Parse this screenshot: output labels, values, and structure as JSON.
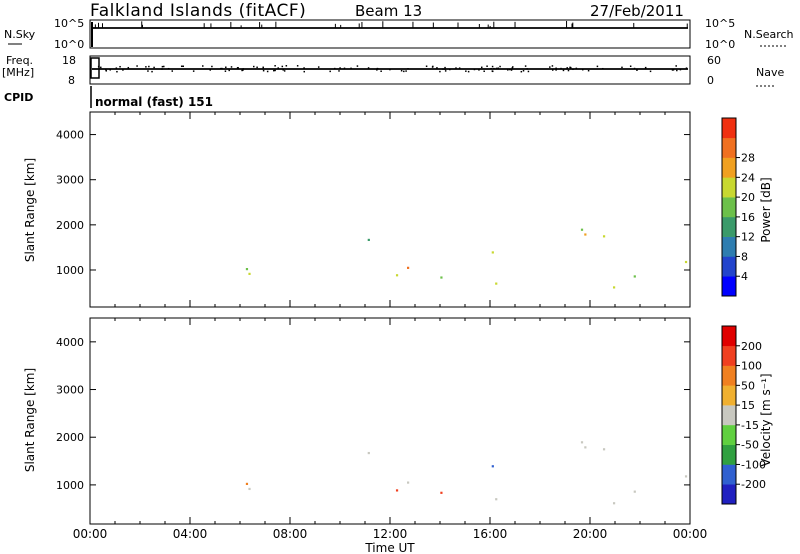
{
  "header": {
    "station": "Falkland Islands (fitACF)",
    "beam": "Beam 13",
    "date": "27/Feb/2011"
  },
  "panels": {
    "nsky": {
      "left_label": "N.Sky",
      "right_label": "N.Search",
      "left_ticks": [
        "10^5",
        "10^0"
      ],
      "right_ticks": [
        "10^5",
        "10^0"
      ]
    },
    "freq": {
      "left_label_1": "Freq.",
      "left_label_2": "[MHz]",
      "right_label": "Nave",
      "left_ticks": [
        "18",
        "8"
      ],
      "right_ticks": [
        "60",
        "0"
      ]
    },
    "cpid": {
      "label": "CPID",
      "mode": "normal (fast) 151"
    }
  },
  "chart_data": [
    {
      "type": "heatmap",
      "name": "power",
      "ylabel": "Slant Range [km]",
      "yticks": [
        1000,
        2000,
        3000,
        4000
      ],
      "ylim": [
        180,
        4500
      ],
      "xlabel": "Time UT",
      "xticks": [
        "00:00",
        "04:00",
        "08:00",
        "12:00",
        "16:00",
        "20:00",
        "00:00"
      ],
      "xlim_hours": [
        0,
        24
      ],
      "colorbar": {
        "label": "Power [dB]",
        "ticks": [
          "4",
          "8",
          "12",
          "16",
          "20",
          "24",
          "28"
        ],
        "colors": [
          "#0000ff",
          "#2244cc",
          "#2e7db0",
          "#3a9a6a",
          "#6cc04a",
          "#c8d830",
          "#f0a020",
          "#f07020",
          "#f03010"
        ]
      }
    },
    {
      "type": "heatmap",
      "name": "velocity",
      "ylabel": "Slant Range [km]",
      "yticks": [
        1000,
        2000,
        3000,
        4000
      ],
      "ylim": [
        180,
        4500
      ],
      "xlabel": "Time UT",
      "xticks": [
        "00:00",
        "04:00",
        "08:00",
        "12:00",
        "16:00",
        "20:00",
        "00:00"
      ],
      "xlim_hours": [
        0,
        24
      ],
      "colorbar": {
        "label": "Velocity [m s⁻¹]",
        "ticks": [
          "200",
          "100",
          "50",
          "15",
          "-15",
          "-50",
          "-100",
          "-200"
        ],
        "colors": [
          "#2020c0",
          "#3060d0",
          "#30a040",
          "#60d040",
          "#c8c8c0",
          "#f0b030",
          "#f08020",
          "#f04020",
          "#e00000"
        ]
      }
    }
  ],
  "footer": {
    "xlabel": "Time UT"
  }
}
